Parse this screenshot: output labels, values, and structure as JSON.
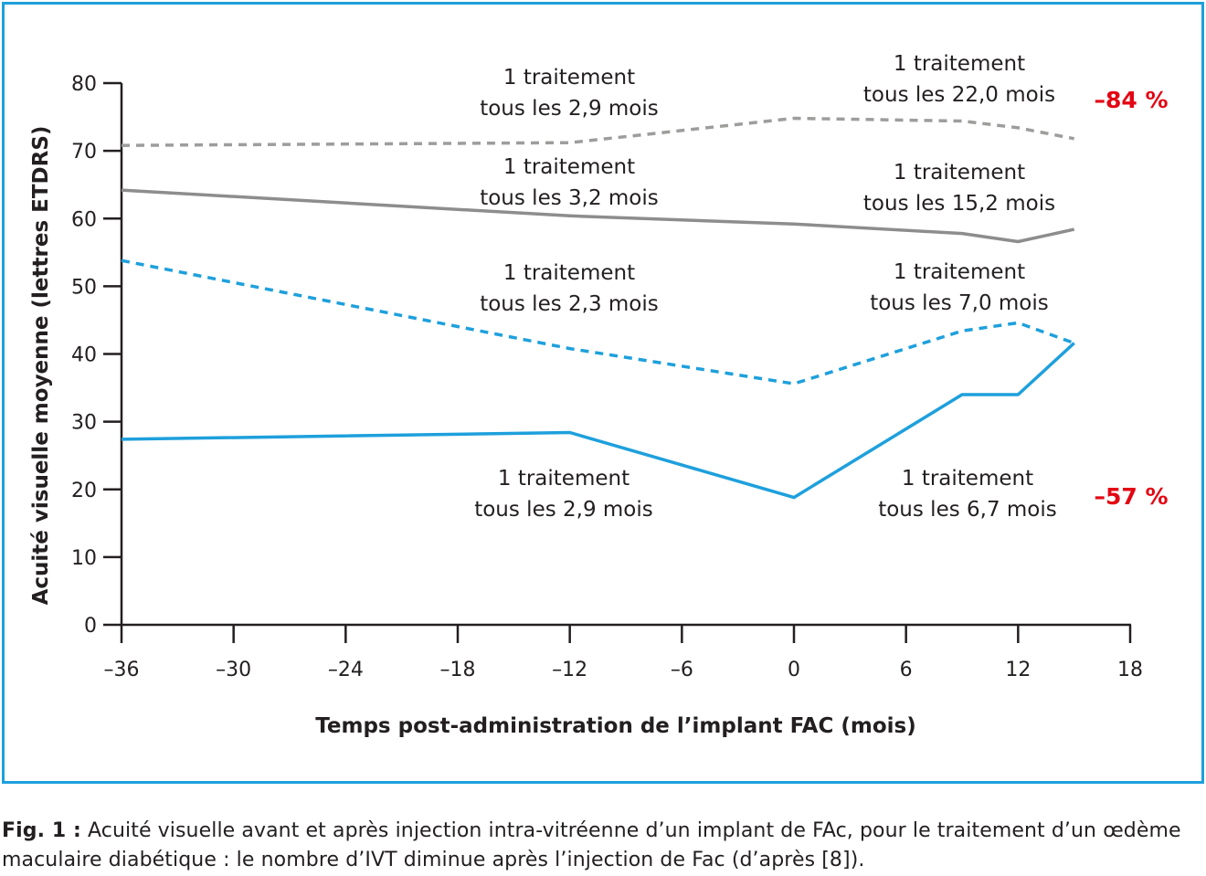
{
  "chart_data": {
    "type": "line",
    "xlabel": "Temps post-administration de l’implant FAC (mois)",
    "ylabel": "Acuité visuelle moyenne (lettres ETDRS)",
    "xlim": [
      -36,
      18
    ],
    "ylim": [
      0,
      80
    ],
    "x_ticks": [
      -36,
      -30,
      -24,
      -18,
      -12,
      -6,
      0,
      6,
      12,
      18
    ],
    "x_tick_labels": [
      "–36",
      "–30",
      "–24",
      "–18",
      "–12",
      "–6",
      "0",
      "6",
      "12",
      "18"
    ],
    "y_ticks": [
      0,
      10,
      20,
      30,
      40,
      50,
      60,
      70,
      80
    ],
    "y_tick_labels": [
      "0",
      "10",
      "20",
      "30",
      "40",
      "50",
      "60",
      "70",
      "80"
    ],
    "grid": false,
    "series": [
      {
        "style": "dashed",
        "color": "#9d9d9c",
        "x": [
          -36,
          -12,
          0,
          9,
          12,
          15
        ],
        "y": [
          70.8,
          71.2,
          74.8,
          74.4,
          73.4,
          71.8
        ]
      },
      {
        "style": "solid",
        "color": "#8d8d8d",
        "x": [
          -36,
          -12,
          0,
          9,
          12,
          15
        ],
        "y": [
          64.2,
          60.4,
          59.2,
          57.8,
          56.6,
          58.4
        ]
      },
      {
        "style": "dashed",
        "color": "#1ea0dc",
        "x": [
          -36,
          -12,
          0,
          9,
          12,
          15
        ],
        "y": [
          53.8,
          40.8,
          35.6,
          43.4,
          44.6,
          41.6
        ]
      },
      {
        "style": "solid",
        "color": "#1ea0dc",
        "x": [
          -36,
          -12,
          0,
          9,
          12,
          15
        ],
        "y": [
          27.4,
          28.4,
          18.8,
          34.0,
          34.0,
          41.6
        ]
      }
    ],
    "annotations": [
      {
        "lines": [
          "1 traitement",
          "tous les 2,9 mois"
        ]
      },
      {
        "lines": [
          "1 traitement",
          "tous les 22,0 mois"
        ]
      },
      {
        "lines": [
          "1 traitement",
          "tous les 3,2 mois"
        ]
      },
      {
        "lines": [
          "1 traitement",
          "tous les 15,2 mois"
        ]
      },
      {
        "lines": [
          "1 traitement",
          "tous les 2,3 mois"
        ]
      },
      {
        "lines": [
          "1 traitement",
          "tous les 7,0 mois"
        ]
      },
      {
        "lines": [
          "1 traitement",
          "tous les 2,9 mois"
        ]
      },
      {
        "lines": [
          "1 traitement",
          "tous les 6,7 mois"
        ]
      }
    ],
    "reductions": [
      {
        "text": "–84 %",
        "color": "#e30613"
      },
      {
        "text": "–57 %",
        "color": "#e30613"
      }
    ]
  },
  "caption": {
    "label": "Fig. 1 :",
    "text": " Acuité visuelle avant et après injection intra-vitréenne d’un implant de FAc, pour le traitement d’un œdème maculaire diabétique : le nombre d’IVT diminue après l’injection de Fac (d’après [8])."
  },
  "colors": {
    "frame": "#1ea0dc",
    "axis": "#231f20",
    "text": "#231f20"
  }
}
